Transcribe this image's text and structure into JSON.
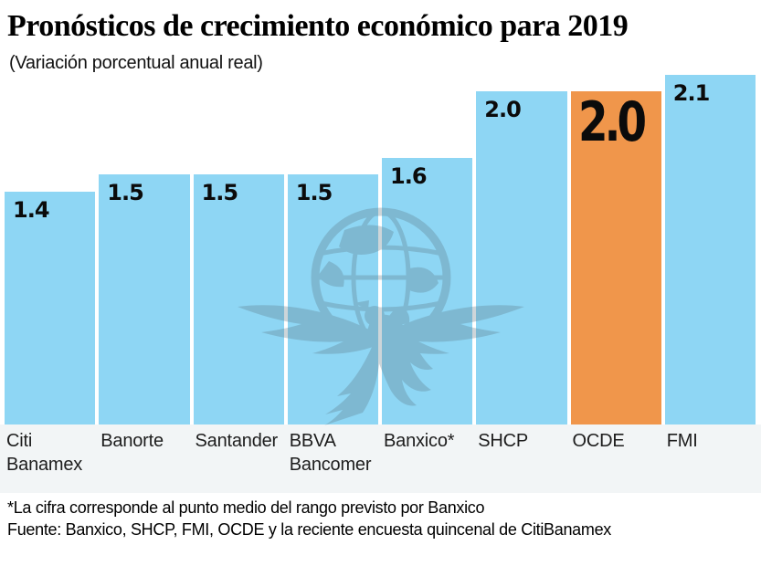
{
  "header": {
    "title": "Pronósticos de crecimiento económico para 2019",
    "subtitle": "(Variación porcentual anual real)"
  },
  "footer": {
    "footnote": "*La cifra corresponde al punto medio del rango previsto por Banxico",
    "source": "Fuente: Banxico, SHCP, FMI, OCDE y la reciente encuesta quincenal de CitiBanamex"
  },
  "watermark": {
    "name": "el-universal-winged-globe-eagle-logo"
  },
  "colors": {
    "bar": "#8ed6f4",
    "highlight": "#f0964b",
    "label_band": "#f2f5f6",
    "watermark": "#5c7683",
    "text": "#111111"
  },
  "chart_data": {
    "type": "bar",
    "categories": [
      "Citi Banamex",
      "Banorte",
      "Santander",
      "BBVA Bancomer",
      "Banxico*",
      "SHCP",
      "OCDE",
      "FMI"
    ],
    "values": [
      1.4,
      1.5,
      1.5,
      1.5,
      1.6,
      2.0,
      2.0,
      2.1
    ],
    "value_labels": [
      "1.4",
      "1.5",
      "1.5",
      "1.5",
      "1.6",
      "2.0",
      "2.0",
      "2.1"
    ],
    "highlight_index": 6,
    "title": "Pronósticos de crecimiento económico para 2019",
    "xlabel": "",
    "ylabel": "Variación porcentual anual real",
    "ylim": [
      0,
      2.1
    ],
    "grid": false,
    "legend": false,
    "value_label_position": "inside-top-left",
    "bar_color": "#8ed6f4",
    "highlight_color": "#f0964b"
  }
}
